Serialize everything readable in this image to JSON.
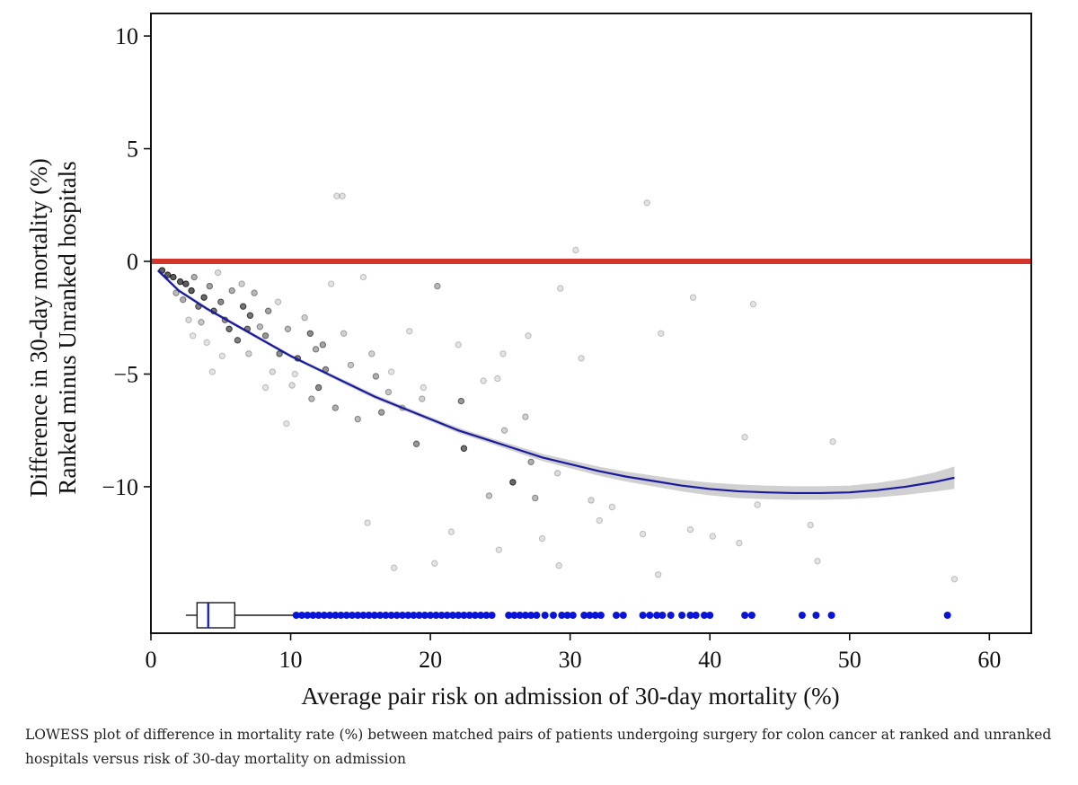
{
  "caption": "LOWESS plot of difference in mortality rate (%) between matched pairs of patients undergoing surgery for colon cancer at ranked and unranked hospitals versus risk of 30-day mortality on admission",
  "colors": {
    "reference_line": "#d2352a",
    "lowess": "#1a1a9e",
    "band": "#c8c8c8",
    "points": "#000000",
    "rug": "#0a14d8",
    "box": "#1a1a1a"
  },
  "chart_data": {
    "type": "scatter",
    "title": "",
    "xlabel": "Average pair risk on admission of 30-day mortality (%)",
    "ylabel_line1": "Difference in 30-day mortality (%)",
    "ylabel_line2": "Ranked minus Unranked hospitals",
    "xlim": [
      0,
      63
    ],
    "ylim": [
      -16.5,
      11
    ],
    "xticks": [
      0,
      10,
      20,
      30,
      40,
      50,
      60
    ],
    "xtick_labels": [
      "0",
      "10",
      "20",
      "30",
      "40",
      "50",
      "60"
    ],
    "yticks": [
      10,
      5,
      0,
      -5,
      -10
    ],
    "ytick_labels": [
      "10",
      "5",
      "0",
      "−5",
      "−10"
    ],
    "reference_line_y": 0,
    "lowess": {
      "x": [
        0.5,
        2,
        4,
        6,
        8,
        10,
        12,
        14,
        16,
        18,
        20,
        22,
        24,
        26,
        28,
        30,
        32,
        34,
        36,
        38,
        40,
        42,
        44,
        46,
        48,
        50,
        52,
        54,
        56,
        57.5
      ],
      "y": [
        -0.4,
        -1.3,
        -2.1,
        -2.8,
        -3.5,
        -4.2,
        -4.8,
        -5.4,
        -6.0,
        -6.5,
        -7.0,
        -7.5,
        -7.9,
        -8.3,
        -8.7,
        -9.0,
        -9.3,
        -9.55,
        -9.75,
        -9.95,
        -10.1,
        -10.2,
        -10.25,
        -10.28,
        -10.28,
        -10.25,
        -10.15,
        -10.0,
        -9.8,
        -9.6
      ],
      "band_halfwidth": [
        0.1,
        0.08,
        0.08,
        0.08,
        0.08,
        0.08,
        0.08,
        0.1,
        0.1,
        0.1,
        0.1,
        0.12,
        0.12,
        0.14,
        0.16,
        0.18,
        0.2,
        0.22,
        0.24,
        0.26,
        0.28,
        0.3,
        0.3,
        0.3,
        0.3,
        0.3,
        0.32,
        0.36,
        0.42,
        0.5
      ]
    },
    "points": [
      {
        "x": 13.3,
        "y": 2.9,
        "a": 0.12
      },
      {
        "x": 13.7,
        "y": 2.9,
        "a": 0.12
      },
      {
        "x": 35.5,
        "y": 2.6,
        "a": 0.12
      },
      {
        "x": 30.4,
        "y": 0.5,
        "a": 0.12
      },
      {
        "x": 20.5,
        "y": -1.1,
        "a": 0.3
      },
      {
        "x": 12.9,
        "y": -1.0,
        "a": 0.12
      },
      {
        "x": 15.2,
        "y": -0.7,
        "a": 0.12
      },
      {
        "x": 29.3,
        "y": -1.2,
        "a": 0.12
      },
      {
        "x": 38.8,
        "y": -1.6,
        "a": 0.12
      },
      {
        "x": 43.1,
        "y": -1.9,
        "a": 0.12
      },
      {
        "x": 36.5,
        "y": -3.2,
        "a": 0.12
      },
      {
        "x": 27.0,
        "y": -3.3,
        "a": 0.12
      },
      {
        "x": 30.8,
        "y": -4.3,
        "a": 0.12
      },
      {
        "x": 25.2,
        "y": -4.1,
        "a": 0.12
      },
      {
        "x": 22.0,
        "y": -3.7,
        "a": 0.12
      },
      {
        "x": 18.5,
        "y": -3.1,
        "a": 0.12
      },
      {
        "x": 23.8,
        "y": -5.3,
        "a": 0.12
      },
      {
        "x": 24.8,
        "y": -5.2,
        "a": 0.12
      },
      {
        "x": 19.5,
        "y": -5.6,
        "a": 0.12
      },
      {
        "x": 17.2,
        "y": -4.9,
        "a": 0.12
      },
      {
        "x": 16.5,
        "y": -6.7,
        "a": 0.4
      },
      {
        "x": 19.0,
        "y": -8.1,
        "a": 0.45
      },
      {
        "x": 22.4,
        "y": -8.3,
        "a": 0.6
      },
      {
        "x": 22.2,
        "y": -6.2,
        "a": 0.45
      },
      {
        "x": 25.9,
        "y": -9.8,
        "a": 0.65
      },
      {
        "x": 27.2,
        "y": -8.9,
        "a": 0.35
      },
      {
        "x": 27.5,
        "y": -10.5,
        "a": 0.3
      },
      {
        "x": 24.2,
        "y": -10.4,
        "a": 0.25
      },
      {
        "x": 26.8,
        "y": -6.9,
        "a": 0.2
      },
      {
        "x": 25.3,
        "y": -7.5,
        "a": 0.2
      },
      {
        "x": 29.1,
        "y": -9.4,
        "a": 0.15
      },
      {
        "x": 31.5,
        "y": -10.6,
        "a": 0.15
      },
      {
        "x": 33.0,
        "y": -10.9,
        "a": 0.12
      },
      {
        "x": 32.1,
        "y": -11.5,
        "a": 0.12
      },
      {
        "x": 28.0,
        "y": -12.3,
        "a": 0.12
      },
      {
        "x": 24.9,
        "y": -12.8,
        "a": 0.12
      },
      {
        "x": 20.3,
        "y": -13.4,
        "a": 0.12
      },
      {
        "x": 17.4,
        "y": -13.6,
        "a": 0.12
      },
      {
        "x": 29.2,
        "y": -13.5,
        "a": 0.12
      },
      {
        "x": 36.3,
        "y": -13.9,
        "a": 0.12
      },
      {
        "x": 15.5,
        "y": -11.6,
        "a": 0.12
      },
      {
        "x": 21.5,
        "y": -12.0,
        "a": 0.12
      },
      {
        "x": 35.2,
        "y": -12.1,
        "a": 0.12
      },
      {
        "x": 38.6,
        "y": -11.9,
        "a": 0.12
      },
      {
        "x": 40.2,
        "y": -12.2,
        "a": 0.12
      },
      {
        "x": 42.1,
        "y": -12.5,
        "a": 0.12
      },
      {
        "x": 47.2,
        "y": -11.7,
        "a": 0.12
      },
      {
        "x": 47.7,
        "y": -13.3,
        "a": 0.12
      },
      {
        "x": 48.8,
        "y": -8.0,
        "a": 0.12
      },
      {
        "x": 43.4,
        "y": -10.8,
        "a": 0.12
      },
      {
        "x": 57.5,
        "y": -14.1,
        "a": 0.12
      },
      {
        "x": 42.5,
        "y": -7.8,
        "a": 0.12
      },
      {
        "x": 10.3,
        "y": -5.0,
        "a": 0.12
      },
      {
        "x": 9.7,
        "y": -7.2,
        "a": 0.12
      },
      {
        "x": 8.2,
        "y": -5.6,
        "a": 0.12
      },
      {
        "x": 4.4,
        "y": -4.9,
        "a": 0.12
      },
      {
        "x": 7.0,
        "y": -4.1,
        "a": 0.2
      },
      {
        "x": 11.5,
        "y": -6.1,
        "a": 0.3
      },
      {
        "x": 12.0,
        "y": -5.6,
        "a": 0.5
      },
      {
        "x": 13.2,
        "y": -6.5,
        "a": 0.35
      },
      {
        "x": 14.8,
        "y": -7.0,
        "a": 0.3
      },
      {
        "x": 16.1,
        "y": -5.1,
        "a": 0.35
      },
      {
        "x": 18.0,
        "y": -6.5,
        "a": 0.2
      },
      {
        "x": 19.4,
        "y": -6.1,
        "a": 0.2
      },
      {
        "x": 12.5,
        "y": -4.8,
        "a": 0.45
      },
      {
        "x": 10.5,
        "y": -4.3,
        "a": 0.55
      },
      {
        "x": 9.2,
        "y": -4.1,
        "a": 0.5
      },
      {
        "x": 11.4,
        "y": -3.2,
        "a": 0.5
      },
      {
        "x": 12.3,
        "y": -3.7,
        "a": 0.4
      },
      {
        "x": 8.2,
        "y": -3.3,
        "a": 0.45
      },
      {
        "x": 7.1,
        "y": -2.4,
        "a": 0.6
      },
      {
        "x": 6.2,
        "y": -3.5,
        "a": 0.55
      },
      {
        "x": 5.6,
        "y": -3.0,
        "a": 0.6
      },
      {
        "x": 6.6,
        "y": -2.0,
        "a": 0.6
      },
      {
        "x": 7.8,
        "y": -2.9,
        "a": 0.3
      },
      {
        "x": 9.8,
        "y": -3.0,
        "a": 0.3
      },
      {
        "x": 11.0,
        "y": -2.5,
        "a": 0.2
      },
      {
        "x": 13.8,
        "y": -3.2,
        "a": 0.2
      },
      {
        "x": 14.3,
        "y": -4.6,
        "a": 0.25
      },
      {
        "x": 15.8,
        "y": -4.1,
        "a": 0.2
      },
      {
        "x": 17.0,
        "y": -5.8,
        "a": 0.25
      },
      {
        "x": 8.7,
        "y": -4.9,
        "a": 0.15
      },
      {
        "x": 10.1,
        "y": -5.5,
        "a": 0.15
      },
      {
        "x": 9.1,
        "y": -1.8,
        "a": 0.15
      },
      {
        "x": 5.0,
        "y": -1.8,
        "a": 0.5
      },
      {
        "x": 5.3,
        "y": -2.6,
        "a": 0.45
      },
      {
        "x": 4.5,
        "y": -2.2,
        "a": 0.6
      },
      {
        "x": 3.8,
        "y": -1.6,
        "a": 0.65
      },
      {
        "x": 3.4,
        "y": -2.0,
        "a": 0.55
      },
      {
        "x": 2.9,
        "y": -1.3,
        "a": 0.7
      },
      {
        "x": 2.5,
        "y": -1.0,
        "a": 0.7
      },
      {
        "x": 2.1,
        "y": -0.9,
        "a": 0.7
      },
      {
        "x": 1.6,
        "y": -0.7,
        "a": 0.7
      },
      {
        "x": 1.2,
        "y": -0.6,
        "a": 0.7
      },
      {
        "x": 0.8,
        "y": -0.4,
        "a": 0.7
      },
      {
        "x": 3.1,
        "y": -0.7,
        "a": 0.35
      },
      {
        "x": 4.2,
        "y": -1.1,
        "a": 0.4
      },
      {
        "x": 5.8,
        "y": -1.3,
        "a": 0.35
      },
      {
        "x": 6.5,
        "y": -1.0,
        "a": 0.2
      },
      {
        "x": 4.8,
        "y": -0.5,
        "a": 0.15
      },
      {
        "x": 2.3,
        "y": -1.7,
        "a": 0.35
      },
      {
        "x": 1.8,
        "y": -1.4,
        "a": 0.3
      },
      {
        "x": 3.6,
        "y": -2.7,
        "a": 0.25
      },
      {
        "x": 2.7,
        "y": -2.6,
        "a": 0.15
      },
      {
        "x": 3.0,
        "y": -3.3,
        "a": 0.12
      },
      {
        "x": 4.0,
        "y": -3.6,
        "a": 0.12
      },
      {
        "x": 5.1,
        "y": -4.2,
        "a": 0.12
      },
      {
        "x": 7.4,
        "y": -1.4,
        "a": 0.3
      },
      {
        "x": 8.4,
        "y": -2.2,
        "a": 0.4
      },
      {
        "x": 6.9,
        "y": -3.0,
        "a": 0.55
      },
      {
        "x": 11.8,
        "y": -3.9,
        "a": 0.35
      }
    ],
    "boxplot": {
      "q1": 3.3,
      "median": 4.1,
      "q3": 6.0,
      "whisker_low": 2.5,
      "whisker_high": 10.2
    },
    "rug_outliers_x": [
      10.4,
      10.8,
      11.2,
      11.6,
      12.0,
      12.4,
      12.8,
      13.2,
      13.6,
      14.0,
      14.4,
      14.8,
      15.2,
      15.6,
      16.0,
      16.4,
      16.8,
      17.2,
      17.6,
      18.0,
      18.4,
      18.8,
      19.2,
      19.6,
      20.0,
      20.4,
      20.8,
      21.2,
      21.6,
      22.0,
      22.4,
      22.8,
      23.2,
      23.6,
      24.0,
      24.4,
      25.6,
      26.0,
      26.4,
      26.8,
      27.2,
      27.6,
      28.2,
      28.8,
      29.4,
      29.8,
      30.2,
      31.0,
      31.4,
      31.8,
      32.2,
      33.3,
      33.8,
      35.2,
      35.7,
      36.2,
      36.6,
      37.2,
      38.0,
      38.6,
      39.0,
      39.6,
      40.0,
      42.5,
      43.0,
      46.6,
      47.6,
      48.7,
      57.0
    ]
  }
}
